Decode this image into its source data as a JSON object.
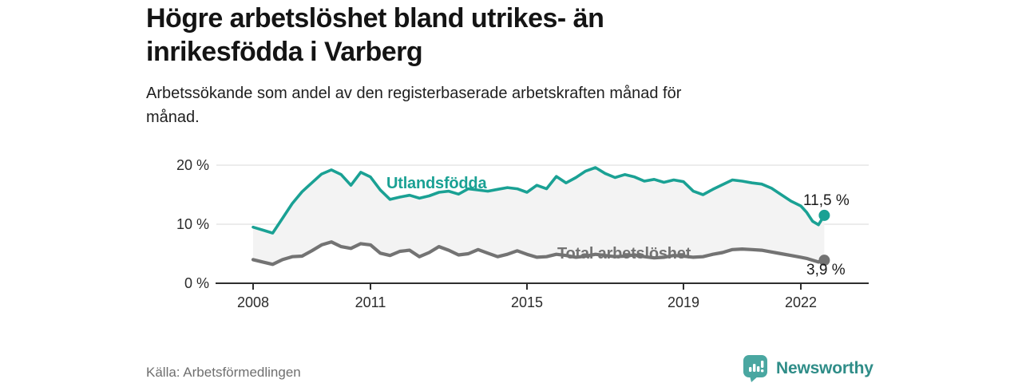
{
  "header": {
    "title_line1": "Högre arbetslöshet bland utrikes- än",
    "title_line2": "inrikesfödda i Varberg",
    "subtitle_line1": "Arbetssökande som andel av den registerbaserade arbetskraften månad för",
    "subtitle_line2": "månad."
  },
  "footer": {
    "source": "Källa: Arbetsförmedlingen",
    "brand": "Newsworthy"
  },
  "colors": {
    "accent_teal": "#1aa194",
    "line_gray": "#737373",
    "fill_between": "#f3f3f3",
    "gridline": "#d9d9d9",
    "axis": "#2e2e2e",
    "tick_text": "#2b2b2b",
    "value_text": "#1a1a1a",
    "brand_text": "#2f8d88",
    "logo_bg": "#4aa7a1"
  },
  "chart_data": {
    "type": "line",
    "title": "Högre arbetslöshet bland utrikes- än inrikesfödda i Varberg",
    "subtitle": "Arbetssökande som andel av den registerbaserade arbetskraften månad för månad.",
    "xlabel": "",
    "ylabel": "",
    "ylim": [
      0,
      21.5
    ],
    "xlim": [
      2008,
      2022.75
    ],
    "grid": "horizontal",
    "legend_position": "inline-labels",
    "y_ticks": [
      {
        "value": 0,
        "label": "0 %"
      },
      {
        "value": 10,
        "label": "10 %"
      },
      {
        "value": 20,
        "label": "20 %"
      }
    ],
    "x_ticks": [
      {
        "value": 2008,
        "label": "2008"
      },
      {
        "value": 2011,
        "label": "2011"
      },
      {
        "value": 2015,
        "label": "2015"
      },
      {
        "value": 2019,
        "label": "2019"
      },
      {
        "value": 2022,
        "label": "2022"
      }
    ],
    "x": [
      2008,
      2008.25,
      2008.5,
      2008.75,
      2009,
      2009.25,
      2009.5,
      2009.75,
      2010,
      2010.25,
      2010.5,
      2010.75,
      2011,
      2011.25,
      2011.5,
      2011.75,
      2012,
      2012.25,
      2012.5,
      2012.75,
      2013,
      2013.25,
      2013.5,
      2013.75,
      2014,
      2014.25,
      2014.5,
      2014.75,
      2015,
      2015.25,
      2015.5,
      2015.75,
      2016,
      2016.25,
      2016.5,
      2016.75,
      2017,
      2017.25,
      2017.5,
      2017.75,
      2018,
      2018.25,
      2018.5,
      2018.75,
      2019,
      2019.25,
      2019.5,
      2019.75,
      2020,
      2020.25,
      2020.5,
      2020.75,
      2021,
      2021.25,
      2021.5,
      2021.75,
      2022,
      2022.15,
      2022.3,
      2022.45,
      2022.6
    ],
    "series": [
      {
        "name": "Utlandsfödda",
        "color": "#1aa194",
        "end_label": "11,5 %",
        "last_value": 11.5,
        "values": [
          9.5,
          9.0,
          8.5,
          11.0,
          13.5,
          15.5,
          17.0,
          18.5,
          19.2,
          18.4,
          16.6,
          18.8,
          18.0,
          15.8,
          14.2,
          14.6,
          14.9,
          14.4,
          14.8,
          15.4,
          15.6,
          15.1,
          16.0,
          15.8,
          15.6,
          15.9,
          16.2,
          16.0,
          15.4,
          16.6,
          16.0,
          18.1,
          17.0,
          17.9,
          19.0,
          19.6,
          18.6,
          17.9,
          18.4,
          18.0,
          17.3,
          17.6,
          17.1,
          17.5,
          17.2,
          15.6,
          15.0,
          15.9,
          16.7,
          17.5,
          17.3,
          17.0,
          16.8,
          16.1,
          15.0,
          13.9,
          13.1,
          12.0,
          10.5,
          9.9,
          11.5
        ]
      },
      {
        "name": "Total arbetslöshet",
        "color": "#737373",
        "end_label": "3,9 %",
        "last_value": 3.9,
        "values": [
          4.0,
          3.6,
          3.2,
          4.0,
          4.5,
          4.6,
          5.5,
          6.5,
          7.0,
          6.2,
          5.9,
          6.7,
          6.5,
          5.1,
          4.7,
          5.4,
          5.6,
          4.5,
          5.2,
          6.2,
          5.6,
          4.8,
          5.0,
          5.7,
          5.1,
          4.5,
          4.9,
          5.5,
          4.9,
          4.4,
          4.5,
          4.9,
          4.7,
          4.4,
          4.6,
          4.9,
          4.7,
          4.5,
          4.6,
          4.8,
          4.5,
          4.3,
          4.4,
          4.7,
          4.6,
          4.4,
          4.5,
          4.9,
          5.2,
          5.7,
          5.8,
          5.7,
          5.6,
          5.3,
          5.0,
          4.7,
          4.4,
          4.2,
          3.9,
          3.6,
          3.9
        ]
      }
    ]
  }
}
